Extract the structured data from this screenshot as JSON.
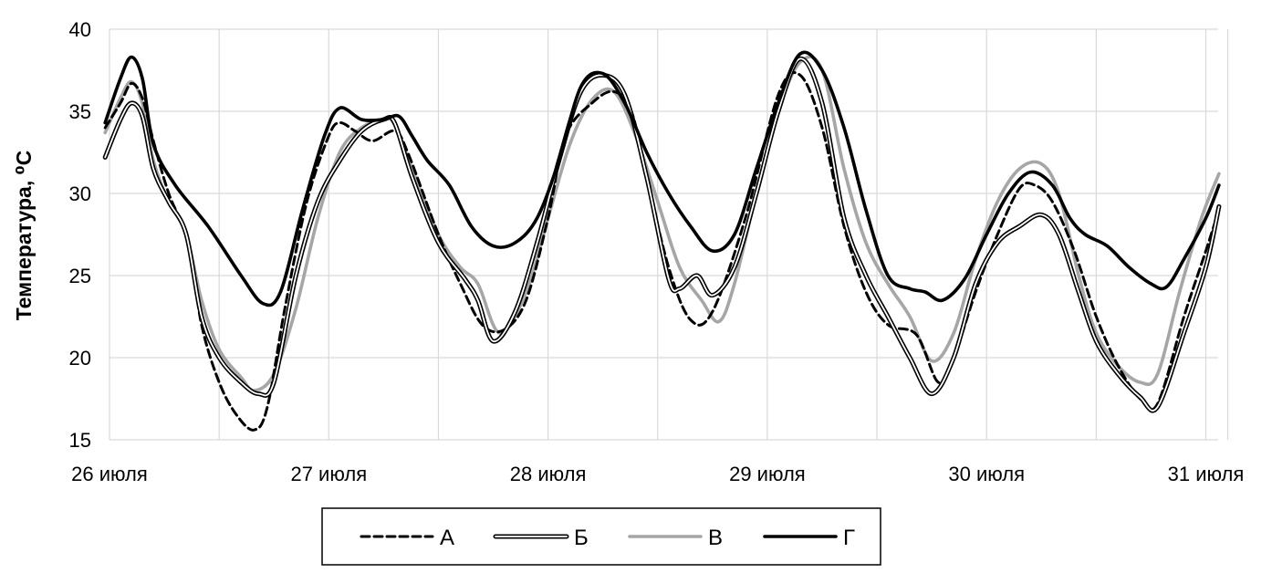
{
  "chart_data": {
    "type": "line",
    "xlabel": "",
    "ylabel": "Температура, ⁰С",
    "ylim": [
      15,
      40
    ],
    "yticks": [
      15,
      20,
      25,
      30,
      35,
      40
    ],
    "xlim": [
      0,
      5.1
    ],
    "x_ticks": [
      {
        "value": 0,
        "label": "26 июля"
      },
      {
        "value": 1,
        "label": "27 июля"
      },
      {
        "value": 2,
        "label": "28 июля"
      },
      {
        "value": 3,
        "label": "29 июля"
      },
      {
        "value": 4,
        "label": "30 июля"
      },
      {
        "value": 5,
        "label": "31 июля"
      }
    ],
    "grid": true,
    "legend_position": "bottom",
    "series": [
      {
        "name": "А",
        "style": "dashed",
        "color": "#000000",
        "points": [
          [
            -0.02,
            34.0
          ],
          [
            0.05,
            35.5
          ],
          [
            0.1,
            36.7
          ],
          [
            0.15,
            35.8
          ],
          [
            0.2,
            33.2
          ],
          [
            0.27,
            30.0
          ],
          [
            0.36,
            27.0
          ],
          [
            0.42,
            22.0
          ],
          [
            0.5,
            18.5
          ],
          [
            0.58,
            16.5
          ],
          [
            0.66,
            15.6
          ],
          [
            0.72,
            17.0
          ],
          [
            0.8,
            23.0
          ],
          [
            0.9,
            29.5
          ],
          [
            1.0,
            33.5
          ],
          [
            1.05,
            34.3
          ],
          [
            1.12,
            33.8
          ],
          [
            1.2,
            33.2
          ],
          [
            1.3,
            33.8
          ],
          [
            1.36,
            32.5
          ],
          [
            1.5,
            27.5
          ],
          [
            1.6,
            24.5
          ],
          [
            1.7,
            22.0
          ],
          [
            1.8,
            21.7
          ],
          [
            1.9,
            23.5
          ],
          [
            2.0,
            28.5
          ],
          [
            2.08,
            33.5
          ],
          [
            2.2,
            35.5
          ],
          [
            2.3,
            36.2
          ],
          [
            2.38,
            35.0
          ],
          [
            2.45,
            31.0
          ],
          [
            2.55,
            25.5
          ],
          [
            2.65,
            22.3
          ],
          [
            2.75,
            22.8
          ],
          [
            2.9,
            28.5
          ],
          [
            3.05,
            36.0
          ],
          [
            3.15,
            37.2
          ],
          [
            3.25,
            34.0
          ],
          [
            3.35,
            28.0
          ],
          [
            3.45,
            24.0
          ],
          [
            3.55,
            22.0
          ],
          [
            3.68,
            21.4
          ],
          [
            3.78,
            18.5
          ],
          [
            3.85,
            20.0
          ],
          [
            3.95,
            24.0
          ],
          [
            4.05,
            27.5
          ],
          [
            4.15,
            30.3
          ],
          [
            4.22,
            30.5
          ],
          [
            4.3,
            29.5
          ],
          [
            4.4,
            26.5
          ],
          [
            4.5,
            22.5
          ],
          [
            4.6,
            19.5
          ],
          [
            4.7,
            17.5
          ],
          [
            4.78,
            17.2
          ],
          [
            4.9,
            22.5
          ],
          [
            5.0,
            26.5
          ],
          [
            5.06,
            29.0
          ]
        ]
      },
      {
        "name": "Б",
        "style": "double",
        "color": "#000000",
        "points": [
          [
            -0.02,
            32.2
          ],
          [
            0.05,
            34.5
          ],
          [
            0.1,
            35.5
          ],
          [
            0.15,
            34.7
          ],
          [
            0.2,
            31.5
          ],
          [
            0.27,
            29.5
          ],
          [
            0.35,
            27.5
          ],
          [
            0.42,
            22.5
          ],
          [
            0.5,
            20.0
          ],
          [
            0.6,
            18.5
          ],
          [
            0.68,
            17.8
          ],
          [
            0.75,
            18.5
          ],
          [
            0.85,
            25.0
          ],
          [
            0.95,
            29.5
          ],
          [
            1.05,
            32.0
          ],
          [
            1.15,
            33.8
          ],
          [
            1.25,
            34.5
          ],
          [
            1.3,
            34.3
          ],
          [
            1.38,
            31.0
          ],
          [
            1.5,
            27.0
          ],
          [
            1.62,
            24.8
          ],
          [
            1.68,
            23.5
          ],
          [
            1.75,
            21.0
          ],
          [
            1.85,
            22.8
          ],
          [
            1.95,
            27.0
          ],
          [
            2.05,
            32.0
          ],
          [
            2.15,
            36.2
          ],
          [
            2.25,
            37.2
          ],
          [
            2.35,
            36.0
          ],
          [
            2.45,
            31.0
          ],
          [
            2.55,
            24.8
          ],
          [
            2.6,
            24.2
          ],
          [
            2.68,
            25.0
          ],
          [
            2.75,
            23.8
          ],
          [
            2.85,
            25.5
          ],
          [
            2.95,
            30.0
          ],
          [
            3.05,
            35.0
          ],
          [
            3.15,
            38.2
          ],
          [
            3.25,
            35.5
          ],
          [
            3.35,
            28.5
          ],
          [
            3.45,
            25.0
          ],
          [
            3.55,
            22.5
          ],
          [
            3.65,
            20.0
          ],
          [
            3.75,
            17.8
          ],
          [
            3.85,
            20.0
          ],
          [
            3.95,
            24.5
          ],
          [
            4.05,
            27.0
          ],
          [
            4.15,
            28.0
          ],
          [
            4.25,
            28.7
          ],
          [
            4.33,
            27.5
          ],
          [
            4.42,
            24.0
          ],
          [
            4.5,
            21.0
          ],
          [
            4.6,
            19.0
          ],
          [
            4.7,
            17.6
          ],
          [
            4.78,
            17.0
          ],
          [
            4.9,
            21.5
          ],
          [
            5.0,
            25.5
          ],
          [
            5.06,
            29.2
          ]
        ]
      },
      {
        "name": "В",
        "style": "solid",
        "color": "#a6a6a6",
        "points": [
          [
            -0.02,
            33.7
          ],
          [
            0.05,
            35.8
          ],
          [
            0.1,
            36.8
          ],
          [
            0.15,
            35.5
          ],
          [
            0.2,
            32.0
          ],
          [
            0.27,
            29.5
          ],
          [
            0.35,
            27.5
          ],
          [
            0.42,
            23.5
          ],
          [
            0.5,
            20.5
          ],
          [
            0.6,
            18.8
          ],
          [
            0.66,
            18.0
          ],
          [
            0.75,
            19.0
          ],
          [
            0.85,
            23.0
          ],
          [
            0.95,
            28.5
          ],
          [
            1.05,
            32.5
          ],
          [
            1.15,
            34.0
          ],
          [
            1.25,
            34.5
          ],
          [
            1.3,
            34.2
          ],
          [
            1.38,
            31.5
          ],
          [
            1.5,
            27.5
          ],
          [
            1.6,
            25.5
          ],
          [
            1.68,
            24.5
          ],
          [
            1.78,
            21.5
          ],
          [
            1.9,
            24.0
          ],
          [
            2.0,
            28.5
          ],
          [
            2.1,
            33.0
          ],
          [
            2.2,
            35.7
          ],
          [
            2.3,
            36.2
          ],
          [
            2.4,
            33.5
          ],
          [
            2.5,
            29.5
          ],
          [
            2.6,
            25.5
          ],
          [
            2.7,
            23.5
          ],
          [
            2.78,
            22.2
          ],
          [
            2.85,
            24.5
          ],
          [
            2.95,
            30.0
          ],
          [
            3.05,
            35.0
          ],
          [
            3.15,
            38.0
          ],
          [
            3.25,
            37.5
          ],
          [
            3.35,
            31.5
          ],
          [
            3.45,
            27.0
          ],
          [
            3.55,
            24.5
          ],
          [
            3.65,
            22.5
          ],
          [
            3.75,
            19.8
          ],
          [
            3.85,
            21.5
          ],
          [
            3.95,
            26.0
          ],
          [
            4.05,
            29.5
          ],
          [
            4.15,
            31.5
          ],
          [
            4.25,
            31.8
          ],
          [
            4.33,
            30.0
          ],
          [
            4.42,
            25.0
          ],
          [
            4.5,
            21.5
          ],
          [
            4.6,
            19.5
          ],
          [
            4.7,
            18.5
          ],
          [
            4.78,
            19.0
          ],
          [
            4.88,
            24.0
          ],
          [
            4.98,
            28.5
          ],
          [
            5.06,
            31.2
          ]
        ]
      },
      {
        "name": "Г",
        "style": "solid-bold",
        "color": "#000000",
        "points": [
          [
            -0.02,
            34.3
          ],
          [
            0.05,
            37.0
          ],
          [
            0.1,
            38.3
          ],
          [
            0.15,
            37.0
          ],
          [
            0.2,
            33.0
          ],
          [
            0.3,
            30.5
          ],
          [
            0.45,
            28.0
          ],
          [
            0.6,
            25.0
          ],
          [
            0.7,
            23.3
          ],
          [
            0.78,
            24.0
          ],
          [
            0.88,
            29.0
          ],
          [
            0.98,
            33.5
          ],
          [
            1.05,
            35.2
          ],
          [
            1.15,
            34.5
          ],
          [
            1.25,
            34.5
          ],
          [
            1.32,
            34.7
          ],
          [
            1.38,
            33.5
          ],
          [
            1.45,
            32.0
          ],
          [
            1.55,
            30.5
          ],
          [
            1.65,
            28.0
          ],
          [
            1.75,
            26.8
          ],
          [
            1.85,
            27.0
          ],
          [
            1.95,
            28.5
          ],
          [
            2.05,
            32.0
          ],
          [
            2.15,
            36.5
          ],
          [
            2.25,
            37.3
          ],
          [
            2.35,
            35.5
          ],
          [
            2.45,
            32.5
          ],
          [
            2.55,
            30.0
          ],
          [
            2.65,
            28.0
          ],
          [
            2.75,
            26.5
          ],
          [
            2.85,
            27.5
          ],
          [
            2.95,
            31.5
          ],
          [
            3.05,
            35.5
          ],
          [
            3.15,
            38.5
          ],
          [
            3.25,
            37.5
          ],
          [
            3.35,
            34.0
          ],
          [
            3.45,
            29.0
          ],
          [
            3.55,
            25.0
          ],
          [
            3.65,
            24.2
          ],
          [
            3.72,
            24.0
          ],
          [
            3.8,
            23.5
          ],
          [
            3.9,
            24.8
          ],
          [
            4.0,
            27.5
          ],
          [
            4.1,
            30.0
          ],
          [
            4.2,
            31.3
          ],
          [
            4.3,
            30.5
          ],
          [
            4.38,
            28.5
          ],
          [
            4.45,
            27.5
          ],
          [
            4.55,
            26.8
          ],
          [
            4.65,
            25.5
          ],
          [
            4.75,
            24.5
          ],
          [
            4.82,
            24.3
          ],
          [
            4.9,
            26.0
          ],
          [
            5.0,
            28.5
          ],
          [
            5.06,
            30.5
          ]
        ]
      }
    ]
  }
}
